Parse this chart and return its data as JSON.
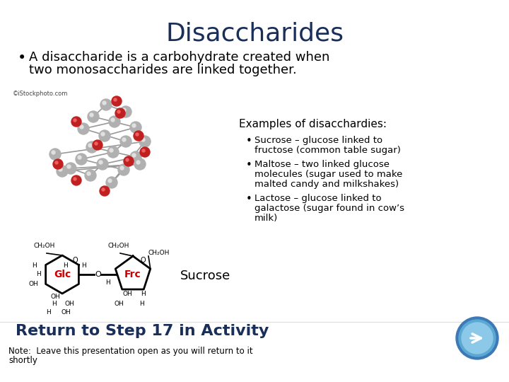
{
  "title": "Disaccharides",
  "title_color": "#1a2e5a",
  "title_fontsize": 26,
  "bg_color": "#ffffff",
  "bullet_line1": "A disaccharide is a carbohydrate created when",
  "bullet_line2": "two monosaccharides are linked together.",
  "bullet_fontsize": 13,
  "bullet_color": "#000000",
  "istockphoto_text": "©iStockphoto.com",
  "istockphoto_fontsize": 6,
  "examples_header": "Examples of disacchardies:",
  "examples_header_fontsize": 11,
  "examples_header_color": "#000000",
  "ex1_line1": "Sucrose – glucose linked to",
  "ex1_line2": "fructose (common table sugar)",
  "ex2_line1": "Maltose – two linked glucose",
  "ex2_line2": "molecules (sugar used to make",
  "ex2_line3": "malted candy and milkshakes)",
  "ex3_line1": "Lactose – glucose linked to",
  "ex3_line2": "galactose (sugar found in cow’s",
  "ex3_line3": "milk)",
  "examples_fontsize": 9.5,
  "examples_color": "#000000",
  "sucrose_label": "Sucrose",
  "sucrose_fontsize": 13,
  "sucrose_color": "#000000",
  "glc_color": "#cc0000",
  "frc_color": "#cc0000",
  "return_text": "Return to Step 17 in Activity",
  "return_fontsize": 16,
  "return_color": "#1a2e5a",
  "note_text": "Note:  Leave this presentation open as you will return to it",
  "note_line2": "shortly",
  "note_fontsize": 8.5,
  "note_color": "#000000",
  "arrow_outer_color": "#5ba8d4",
  "arrow_mid_color": "#89c8e8",
  "arrow_inner_color": "#aadcf2",
  "arrow_white": "#ffffff"
}
